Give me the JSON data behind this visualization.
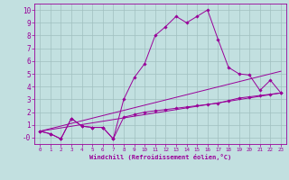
{
  "xlabel": "Windchill (Refroidissement éolien,°C)",
  "background_color": "#c2e0e0",
  "line_color": "#990099",
  "grid_color": "#a0c0c0",
  "xlim": [
    -0.5,
    23.5
  ],
  "ylim": [
    -0.5,
    10.5
  ],
  "xticks": [
    0,
    1,
    2,
    3,
    4,
    5,
    6,
    7,
    8,
    9,
    10,
    11,
    12,
    13,
    14,
    15,
    16,
    17,
    18,
    19,
    20,
    21,
    22,
    23
  ],
  "yticks": [
    0,
    1,
    2,
    3,
    4,
    5,
    6,
    7,
    8,
    9,
    10
  ],
  "ytick_labels": [
    "-0",
    "1",
    "2",
    "3",
    "4",
    "5",
    "6",
    "7",
    "8",
    "9",
    "10"
  ],
  "series": [
    {
      "x": [
        0,
        1,
        2,
        3,
        4,
        5,
        6,
        7,
        8,
        9,
        10,
        11,
        12,
        13,
        14,
        15,
        16,
        17,
        18,
        19,
        20,
        21,
        22,
        23
      ],
      "y": [
        0.5,
        0.3,
        -0.1,
        1.5,
        0.9,
        0.8,
        0.8,
        -0.1,
        3.0,
        4.7,
        5.8,
        8.0,
        8.7,
        9.5,
        9.0,
        9.5,
        10.0,
        7.7,
        5.5,
        5.0,
        4.9,
        3.7,
        4.5,
        3.5
      ],
      "markers": true
    },
    {
      "x": [
        0,
        1,
        2,
        3,
        4,
        5,
        6,
        7,
        8,
        9,
        10,
        11,
        12,
        13,
        14,
        15,
        16,
        17,
        18,
        19,
        20,
        21,
        22,
        23
      ],
      "y": [
        0.5,
        0.3,
        -0.1,
        1.5,
        0.9,
        0.8,
        0.8,
        -0.1,
        1.6,
        1.8,
        2.0,
        2.1,
        2.2,
        2.3,
        2.4,
        2.5,
        2.6,
        2.7,
        2.9,
        3.1,
        3.2,
        3.3,
        3.4,
        3.5
      ],
      "markers": true
    },
    {
      "x": [
        0,
        23
      ],
      "y": [
        0.5,
        3.5
      ],
      "markers": false
    },
    {
      "x": [
        0,
        23
      ],
      "y": [
        0.5,
        5.2
      ],
      "markers": false
    }
  ]
}
